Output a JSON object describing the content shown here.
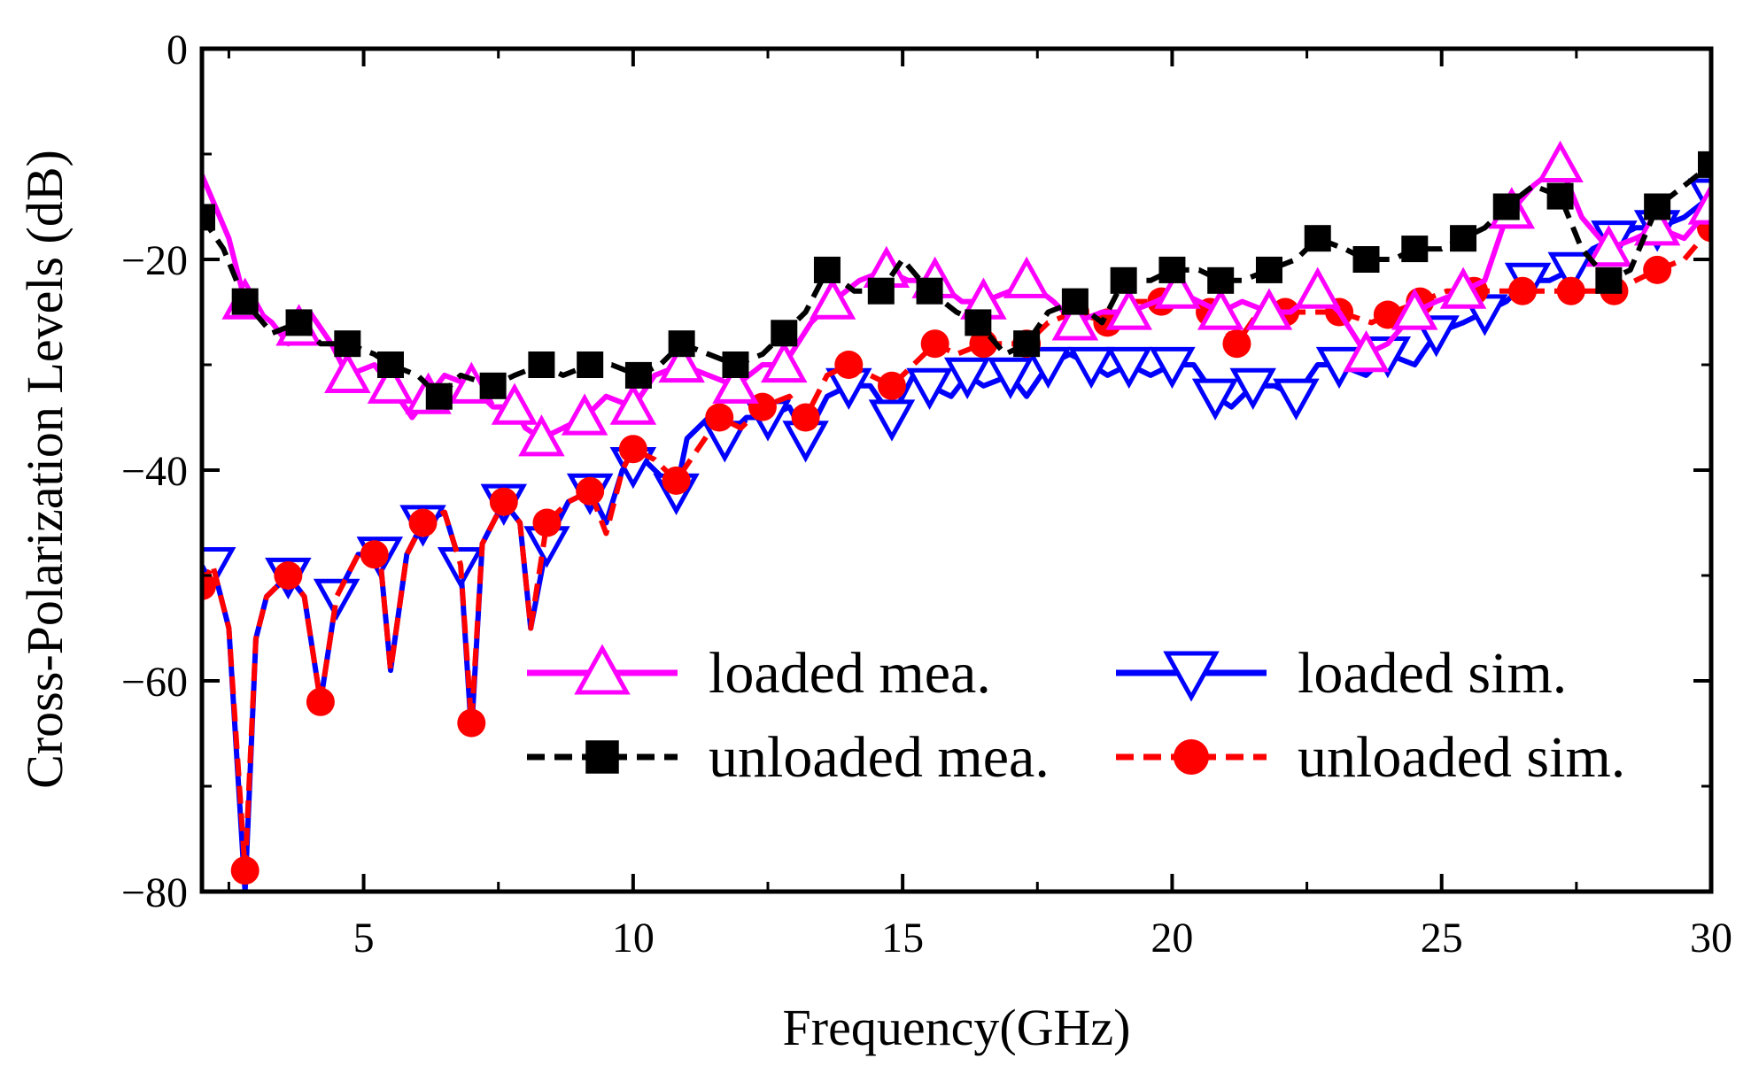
{
  "chart_data": {
    "type": "line",
    "xlabel": "Frequency(GHz)",
    "ylabel": "Cross-Polarization Levels (dB)",
    "xlim": [
      2,
      30
    ],
    "ylim": [
      -80,
      0
    ],
    "xticks": [
      5,
      10,
      15,
      20,
      25,
      30
    ],
    "yticks": [
      0,
      -20,
      -40,
      -60,
      -80
    ],
    "xtick_labels": [
      "5",
      "10",
      "15",
      "20",
      "25",
      "30"
    ],
    "ytick_labels": [
      "0",
      "−20",
      "−40",
      "−60",
      "−80"
    ],
    "legend_position": "lower-right",
    "series": [
      {
        "name": "loaded mea.",
        "color": "#ff00ff",
        "line": "solid",
        "marker": "triangle-up",
        "points": [
          [
            2.0,
            -12
          ],
          [
            2.5,
            -18
          ],
          [
            2.8,
            -24
          ],
          [
            3.3,
            -26
          ],
          [
            3.6,
            -28
          ],
          [
            4.0,
            -25
          ],
          [
            4.4,
            -28
          ],
          [
            4.7,
            -31
          ],
          [
            5.2,
            -30
          ],
          [
            5.5,
            -32
          ],
          [
            5.9,
            -35
          ],
          [
            6.2,
            -33
          ],
          [
            6.5,
            -31
          ],
          [
            7.0,
            -32
          ],
          [
            7.4,
            -34
          ],
          [
            7.8,
            -34
          ],
          [
            8.0,
            -36
          ],
          [
            8.3,
            -37
          ],
          [
            8.7,
            -36
          ],
          [
            9.1,
            -35
          ],
          [
            9.5,
            -33
          ],
          [
            10.0,
            -34
          ],
          [
            10.4,
            -31
          ],
          [
            10.9,
            -30
          ],
          [
            11.4,
            -31
          ],
          [
            11.9,
            -32
          ],
          [
            12.4,
            -30
          ],
          [
            12.8,
            -30
          ],
          [
            13.3,
            -26
          ],
          [
            13.7,
            -24
          ],
          [
            14.2,
            -22
          ],
          [
            14.7,
            -21
          ],
          [
            15.1,
            -22
          ],
          [
            15.6,
            -22
          ],
          [
            16.1,
            -24
          ],
          [
            16.5,
            -24
          ],
          [
            17.0,
            -23
          ],
          [
            17.3,
            -22
          ],
          [
            17.8,
            -24
          ],
          [
            18.2,
            -26
          ],
          [
            18.7,
            -25
          ],
          [
            19.2,
            -25
          ],
          [
            19.7,
            -24
          ],
          [
            20.1,
            -23
          ],
          [
            20.5,
            -24
          ],
          [
            20.9,
            -25
          ],
          [
            21.3,
            -24
          ],
          [
            21.8,
            -25
          ],
          [
            22.2,
            -25
          ],
          [
            22.7,
            -23
          ],
          [
            23.1,
            -25
          ],
          [
            23.6,
            -29
          ],
          [
            24.0,
            -28
          ],
          [
            24.5,
            -25
          ],
          [
            24.9,
            -24
          ],
          [
            25.4,
            -23
          ],
          [
            25.8,
            -22
          ],
          [
            26.2,
            -16
          ],
          [
            26.7,
            -13
          ],
          [
            27.2,
            -11
          ],
          [
            27.6,
            -16
          ],
          [
            28.1,
            -19
          ],
          [
            28.6,
            -18
          ],
          [
            29.0,
            -17
          ],
          [
            29.5,
            -18
          ],
          [
            30.0,
            -15
          ]
        ],
        "markers_x": [
          2.8,
          3.8,
          4.7,
          5.5,
          6.2,
          7.0,
          7.8,
          8.3,
          9.1,
          10.0,
          10.9,
          11.9,
          12.8,
          13.7,
          14.7,
          15.6,
          16.5,
          17.3,
          18.2,
          19.2,
          20.1,
          20.9,
          21.8,
          22.7,
          23.6,
          24.5,
          25.4,
          26.3,
          27.2,
          28.1,
          29.0,
          30.0
        ]
      },
      {
        "name": "loaded sim.",
        "color": "#0000ff",
        "line": "solid",
        "marker": "triangle-down",
        "points": [
          [
            2.0,
            -51
          ],
          [
            2.2,
            -49
          ],
          [
            2.5,
            -55
          ],
          [
            2.8,
            -80
          ],
          [
            3.0,
            -56
          ],
          [
            3.2,
            -52
          ],
          [
            3.6,
            -50
          ],
          [
            3.9,
            -52
          ],
          [
            4.2,
            -62
          ],
          [
            4.5,
            -52
          ],
          [
            4.9,
            -48
          ],
          [
            5.3,
            -48
          ],
          [
            5.5,
            -59
          ],
          [
            5.8,
            -48
          ],
          [
            6.1,
            -45
          ],
          [
            6.5,
            -44
          ],
          [
            6.8,
            -49
          ],
          [
            7.0,
            -65
          ],
          [
            7.2,
            -47
          ],
          [
            7.6,
            -43
          ],
          [
            7.9,
            -45
          ],
          [
            8.1,
            -55
          ],
          [
            8.4,
            -47
          ],
          [
            8.8,
            -43
          ],
          [
            9.2,
            -42
          ],
          [
            9.5,
            -45
          ],
          [
            9.8,
            -40
          ],
          [
            10.2,
            -39
          ],
          [
            10.6,
            -41
          ],
          [
            10.8,
            -42
          ],
          [
            11.0,
            -37
          ],
          [
            11.4,
            -35
          ],
          [
            11.7,
            -37
          ],
          [
            12.1,
            -35
          ],
          [
            12.5,
            -35
          ],
          [
            12.9,
            -34
          ],
          [
            13.2,
            -37
          ],
          [
            13.6,
            -33
          ],
          [
            14.0,
            -32
          ],
          [
            14.4,
            -32
          ],
          [
            14.8,
            -35
          ],
          [
            15.2,
            -31
          ],
          [
            15.5,
            -32
          ],
          [
            15.9,
            -33
          ],
          [
            16.2,
            -31
          ],
          [
            16.5,
            -32
          ],
          [
            17.0,
            -31
          ],
          [
            17.3,
            -33
          ],
          [
            17.7,
            -30
          ],
          [
            18.1,
            -29
          ],
          [
            18.5,
            -30
          ],
          [
            18.8,
            -31
          ],
          [
            19.2,
            -30
          ],
          [
            19.6,
            -31
          ],
          [
            20.0,
            -30
          ],
          [
            20.4,
            -30
          ],
          [
            20.8,
            -33
          ],
          [
            21.1,
            -34
          ],
          [
            21.5,
            -32
          ],
          [
            21.9,
            -32
          ],
          [
            22.3,
            -33
          ],
          [
            22.7,
            -30
          ],
          [
            23.1,
            -30
          ],
          [
            23.6,
            -31
          ],
          [
            24.0,
            -29
          ],
          [
            24.5,
            -30
          ],
          [
            24.9,
            -27
          ],
          [
            25.4,
            -26
          ],
          [
            25.8,
            -25
          ],
          [
            26.2,
            -24
          ],
          [
            26.6,
            -22
          ],
          [
            27.0,
            -22
          ],
          [
            27.4,
            -21
          ],
          [
            27.8,
            -19
          ],
          [
            28.2,
            -18
          ],
          [
            28.6,
            -17
          ],
          [
            29.0,
            -17
          ],
          [
            29.5,
            -16
          ],
          [
            30.0,
            -14
          ]
        ],
        "markers_x": [
          2.2,
          3.6,
          4.5,
          5.3,
          6.1,
          6.8,
          7.6,
          8.4,
          9.2,
          10.0,
          10.8,
          11.7,
          12.5,
          13.2,
          14.0,
          14.8,
          15.5,
          16.2,
          17.0,
          17.7,
          18.5,
          19.2,
          20.0,
          20.8,
          21.5,
          22.3,
          23.1,
          24.0,
          24.9,
          25.8,
          26.6,
          27.4,
          28.2,
          29.0,
          30.0
        ]
      },
      {
        "name": "unloaded mea.",
        "color": "#000000",
        "line": "dashed",
        "marker": "square",
        "points": [
          [
            2.0,
            -16
          ],
          [
            2.4,
            -19
          ],
          [
            2.8,
            -24
          ],
          [
            3.3,
            -27
          ],
          [
            3.8,
            -26
          ],
          [
            4.2,
            -28
          ],
          [
            4.7,
            -28
          ],
          [
            5.2,
            -29
          ],
          [
            5.5,
            -30
          ],
          [
            6.0,
            -31
          ],
          [
            6.4,
            -33
          ],
          [
            6.8,
            -31
          ],
          [
            7.4,
            -32
          ],
          [
            7.8,
            -31
          ],
          [
            8.3,
            -30
          ],
          [
            8.7,
            -31
          ],
          [
            9.2,
            -30
          ],
          [
            9.6,
            -30
          ],
          [
            10.1,
            -31
          ],
          [
            10.5,
            -30
          ],
          [
            10.9,
            -28
          ],
          [
            11.4,
            -29
          ],
          [
            11.9,
            -30
          ],
          [
            12.4,
            -29
          ],
          [
            12.8,
            -27
          ],
          [
            13.2,
            -25
          ],
          [
            13.6,
            -21
          ],
          [
            14.1,
            -23
          ],
          [
            14.6,
            -23
          ],
          [
            15.0,
            -20
          ],
          [
            15.5,
            -23
          ],
          [
            16.0,
            -25
          ],
          [
            16.4,
            -26
          ],
          [
            16.9,
            -29
          ],
          [
            17.3,
            -28
          ],
          [
            17.7,
            -25
          ],
          [
            18.2,
            -24
          ],
          [
            18.7,
            -26
          ],
          [
            19.1,
            -22
          ],
          [
            19.6,
            -22
          ],
          [
            20.0,
            -21
          ],
          [
            20.5,
            -21
          ],
          [
            20.9,
            -22
          ],
          [
            21.3,
            -22
          ],
          [
            21.8,
            -21
          ],
          [
            22.3,
            -20
          ],
          [
            22.7,
            -18
          ],
          [
            23.2,
            -19
          ],
          [
            23.6,
            -20
          ],
          [
            24.1,
            -20
          ],
          [
            24.5,
            -19
          ],
          [
            25.0,
            -19
          ],
          [
            25.4,
            -18
          ],
          [
            25.8,
            -17
          ],
          [
            26.2,
            -15
          ],
          [
            26.7,
            -13
          ],
          [
            27.2,
            -14
          ],
          [
            27.6,
            -19
          ],
          [
            28.1,
            -22
          ],
          [
            28.5,
            -21
          ],
          [
            29.0,
            -15
          ],
          [
            29.5,
            -13
          ],
          [
            30.0,
            -11
          ]
        ],
        "markers_x": [
          2.0,
          2.8,
          3.8,
          4.7,
          5.5,
          6.4,
          7.4,
          8.3,
          9.2,
          10.1,
          10.9,
          11.9,
          12.8,
          13.6,
          14.6,
          15.5,
          16.4,
          17.3,
          18.2,
          19.1,
          20.0,
          20.9,
          21.8,
          22.7,
          23.6,
          24.5,
          25.4,
          26.2,
          27.2,
          28.1,
          29.0,
          30.0
        ]
      },
      {
        "name": "unloaded sim.",
        "color": "#ff0000",
        "line": "dashed",
        "marker": "circle",
        "points": [
          [
            2.0,
            -51
          ],
          [
            2.2,
            -49
          ],
          [
            2.5,
            -55
          ],
          [
            2.8,
            -78
          ],
          [
            3.0,
            -56
          ],
          [
            3.2,
            -52
          ],
          [
            3.6,
            -50
          ],
          [
            3.9,
            -52
          ],
          [
            4.2,
            -62
          ],
          [
            4.5,
            -52
          ],
          [
            4.9,
            -48
          ],
          [
            5.3,
            -48
          ],
          [
            5.5,
            -59
          ],
          [
            5.8,
            -48
          ],
          [
            6.1,
            -45
          ],
          [
            6.5,
            -44
          ],
          [
            6.8,
            -49
          ],
          [
            7.0,
            -64
          ],
          [
            7.2,
            -47
          ],
          [
            7.6,
            -43
          ],
          [
            7.9,
            -45
          ],
          [
            8.1,
            -55
          ],
          [
            8.4,
            -45
          ],
          [
            8.8,
            -43
          ],
          [
            9.2,
            -42
          ],
          [
            9.5,
            -46
          ],
          [
            9.8,
            -40
          ],
          [
            10.0,
            -38
          ],
          [
            10.4,
            -39
          ],
          [
            10.8,
            -41
          ],
          [
            11.2,
            -38
          ],
          [
            11.6,
            -35
          ],
          [
            12.0,
            -36
          ],
          [
            12.4,
            -34
          ],
          [
            12.9,
            -33
          ],
          [
            13.2,
            -35
          ],
          [
            13.6,
            -31
          ],
          [
            14.0,
            -30
          ],
          [
            14.4,
            -31
          ],
          [
            14.8,
            -32
          ],
          [
            15.2,
            -30
          ],
          [
            15.6,
            -28
          ],
          [
            16.0,
            -29
          ],
          [
            16.5,
            -28
          ],
          [
            17.0,
            -28
          ],
          [
            17.3,
            -28
          ],
          [
            17.7,
            -26
          ],
          [
            18.2,
            -25
          ],
          [
            18.8,
            -26
          ],
          [
            19.3,
            -24
          ],
          [
            19.8,
            -24
          ],
          [
            20.3,
            -24
          ],
          [
            20.7,
            -25
          ],
          [
            21.2,
            -28
          ],
          [
            21.6,
            -25
          ],
          [
            22.1,
            -25
          ],
          [
            22.6,
            -25
          ],
          [
            23.1,
            -25
          ],
          [
            23.7,
            -26
          ],
          [
            24.1,
            -25
          ],
          [
            24.6,
            -24
          ],
          [
            25.1,
            -23
          ],
          [
            25.6,
            -23
          ],
          [
            26.1,
            -23
          ],
          [
            26.5,
            -23
          ],
          [
            26.9,
            -23
          ],
          [
            27.4,
            -23
          ],
          [
            27.8,
            -23
          ],
          [
            28.2,
            -23
          ],
          [
            28.6,
            -22
          ],
          [
            29.0,
            -21
          ],
          [
            29.5,
            -20
          ],
          [
            30.0,
            -17
          ]
        ],
        "markers_x": [
          2.0,
          2.8,
          3.6,
          4.2,
          5.2,
          6.1,
          7.0,
          7.6,
          8.4,
          9.2,
          10.0,
          10.8,
          11.6,
          12.4,
          13.2,
          14.0,
          14.8,
          15.6,
          16.5,
          17.3,
          18.2,
          18.8,
          19.8,
          20.7,
          21.2,
          22.1,
          23.1,
          24.0,
          24.6,
          25.6,
          26.5,
          27.4,
          28.2,
          29.0,
          30.0
        ]
      }
    ]
  }
}
